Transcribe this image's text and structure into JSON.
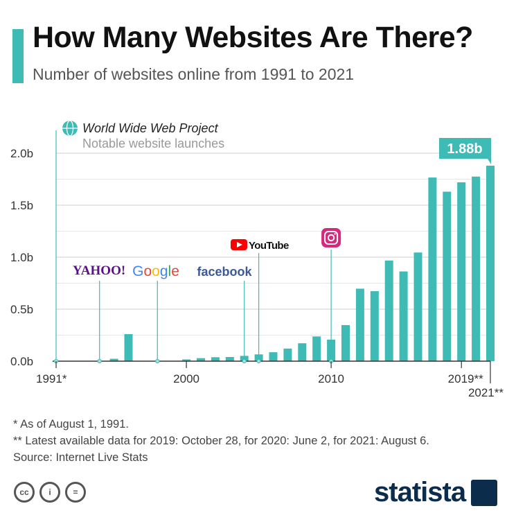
{
  "header": {
    "title": "How Many Websites Are There?",
    "subtitle": "Number of websites online from 1991 to 2021"
  },
  "chart_data": {
    "type": "bar",
    "ylim": [
      0,
      2.0
    ],
    "y_ticks": [
      0,
      0.5,
      1.0,
      1.5,
      2.0
    ],
    "y_tick_labels": [
      "0.0b",
      "0.5b",
      "1.0b",
      "1.5b",
      "2.0b"
    ],
    "x_tick_labels": [
      {
        "year": 1991,
        "label": "1991*"
      },
      {
        "year": 2000,
        "label": "2000"
      },
      {
        "year": 2010,
        "label": "2010"
      },
      {
        "year": 2019,
        "label": "2019**"
      },
      {
        "year": 2021,
        "label": "2021**"
      }
    ],
    "unit": "b",
    "categories": [
      1991,
      1992,
      1993,
      1994,
      1995,
      1996,
      1997,
      1998,
      1999,
      2000,
      2001,
      2002,
      2003,
      2004,
      2005,
      2006,
      2007,
      2008,
      2009,
      2010,
      2011,
      2012,
      2013,
      2014,
      2015,
      2016,
      2017,
      2018,
      2019,
      2020,
      2021
    ],
    "values": [
      1e-06,
      1e-05,
      0.00013,
      0.0027,
      0.023,
      0.26,
      0.0012,
      0.0024,
      0.0032,
      0.017,
      0.029,
      0.038,
      0.04,
      0.051,
      0.065,
      0.086,
      0.121,
      0.172,
      0.238,
      0.207,
      0.347,
      0.697,
      0.673,
      0.968,
      0.863,
      1.045,
      1.766,
      1.63,
      1.72,
      1.775,
      1.88
    ],
    "highlight": {
      "year": 2021,
      "label": "1.88b"
    },
    "legend": {
      "title": "World Wide Web Project",
      "subtitle": "Notable website launches"
    },
    "markers": [
      {
        "year": 1991,
        "name": "World Wide Web Project"
      },
      {
        "year": 1994,
        "name": "YAHOO!"
      },
      {
        "year": 1998,
        "name": "Google"
      },
      {
        "year": 2004,
        "name": "facebook"
      },
      {
        "year": 2005,
        "name": "YouTube"
      },
      {
        "year": 2010,
        "name": "Instagram"
      }
    ],
    "colors": {
      "bar": "#3dbbb4",
      "grid": "#cfcfcf",
      "axis": "#333333"
    }
  },
  "notes": {
    "note1": "*   As of August 1, 1991.",
    "note2": "** Latest available data for 2019: October 28, for 2020: June 2, for 2021: August 6.",
    "source": "Source: Internet Live Stats"
  },
  "footer": {
    "license_icons": [
      "cc-icon",
      "attribution-icon",
      "no-derivatives-icon"
    ],
    "cc_labels": [
      "cc",
      "i",
      "="
    ],
    "brand": "statista"
  }
}
